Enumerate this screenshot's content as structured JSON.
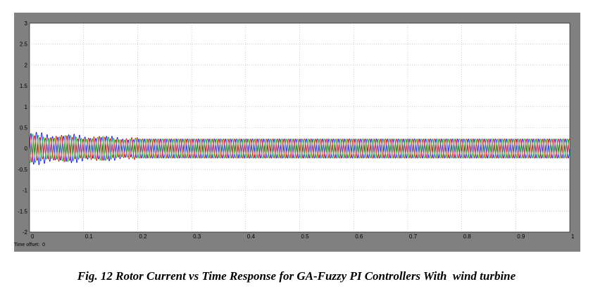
{
  "caption": "Fig. 12 Rotor Current vs Time Response for GA-Fuzzy PI Controllers With  wind turbine",
  "scope": {
    "time_offset_label": "Time offset:",
    "time_offset_value": "0"
  },
  "colors": {
    "frame": "#808080",
    "plot_bg": "#ffffff",
    "grid": "#b0b0b0",
    "phase_a": "#0000ff",
    "phase_b": "#00b000",
    "phase_c": "#e00000"
  },
  "chart_data": {
    "type": "line",
    "title": "",
    "xlabel": "",
    "ylabel": "",
    "xlim": [
      0,
      1
    ],
    "ylim": [
      -2,
      3
    ],
    "x_ticks": [
      0,
      0.1,
      0.2,
      0.3,
      0.4,
      0.5,
      0.6,
      0.7,
      0.8,
      0.9,
      1
    ],
    "x_tick_labels": [
      "0",
      "0.1",
      "0.2",
      "0.3",
      "0.4",
      "0.5",
      "0.6",
      "0.7",
      "0.8",
      "0.9",
      "1"
    ],
    "y_ticks": [
      3,
      2.5,
      2,
      1.5,
      1,
      0.5,
      0,
      -0.5,
      -1,
      -1.5,
      -2
    ],
    "y_tick_labels": [
      "3",
      "2.5",
      "2",
      "1.5",
      "1",
      "0.5",
      "0",
      "-0.5",
      "-1",
      "-1.5",
      "-2"
    ],
    "grid": true,
    "legend": "none",
    "series": [
      {
        "color": "#0000ff",
        "frequency_hz": 100,
        "phase_deg": 0,
        "amplitude_initial": 0.35,
        "amplitude_steady": 0.23,
        "settling_time": 0.2
      },
      {
        "color": "#00b000",
        "frequency_hz": 100,
        "phase_deg": -120,
        "amplitude_initial": 0.3,
        "amplitude_steady": 0.23,
        "settling_time": 0.2
      },
      {
        "color": "#e00000",
        "frequency_hz": 100,
        "phase_deg": 120,
        "amplitude_initial": 0.3,
        "amplitude_steady": 0.23,
        "settling_time": 0.2
      }
    ]
  }
}
